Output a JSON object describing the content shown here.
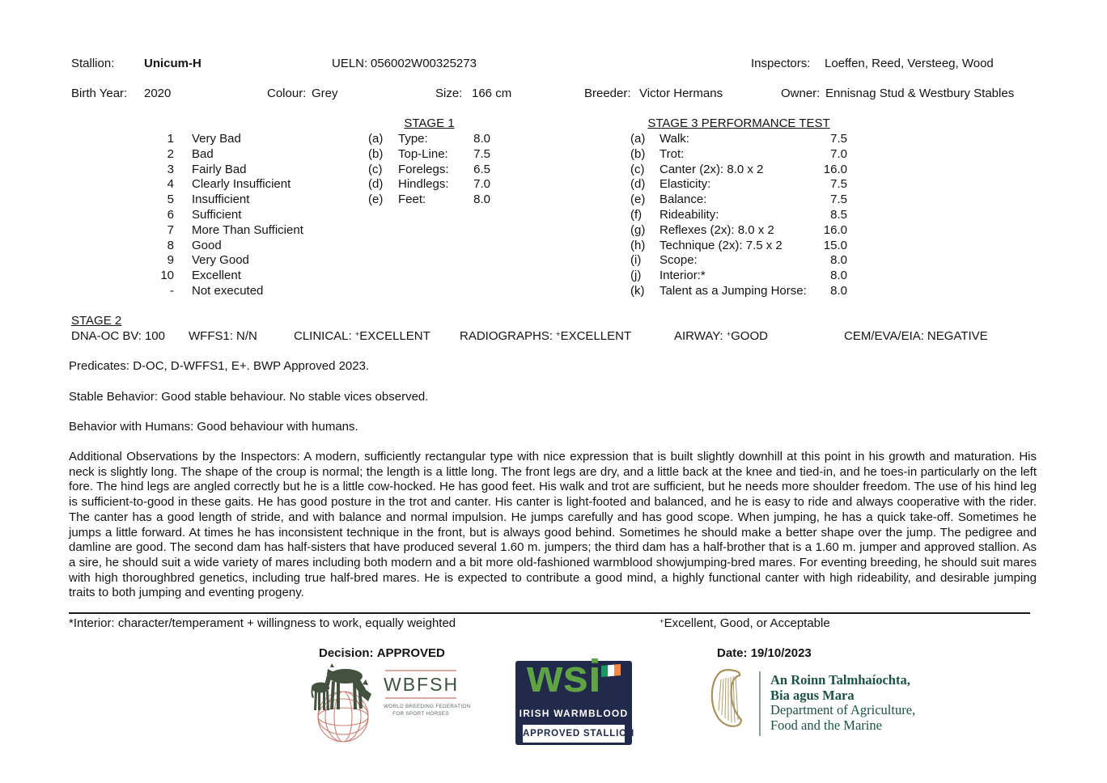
{
  "doc": {
    "stallion_label": "Stallion:",
    "stallion_name": "Unicum-H",
    "ueln_label": "UELN:",
    "ueln_value": "056002W00325273",
    "inspectors_label": "Inspectors:",
    "inspectors_value": "Loeffen, Reed, Versteeg, Wood",
    "birth_year_label": "Birth Year:",
    "birth_year_value": "2020",
    "colour_label": "Colour:",
    "colour_value": "Grey",
    "size_label": "Size:",
    "size_value": "166 cm",
    "breeder_label": "Breeder:",
    "breeder_value": "Victor Hermans",
    "owner_label": "Owner:",
    "owner_value": "Ennisnag Stud & Westbury Stables"
  },
  "scale": {
    "items": [
      {
        "num": "1",
        "label": "Very Bad"
      },
      {
        "num": "2",
        "label": "Bad"
      },
      {
        "num": "3",
        "label": "Fairly Bad"
      },
      {
        "num": "4",
        "label": "Clearly Insufficient"
      },
      {
        "num": "5",
        "label": "Insufficient"
      },
      {
        "num": "6",
        "label": "Sufficient"
      },
      {
        "num": "7",
        "label": "More Than Sufficient"
      },
      {
        "num": "8",
        "label": "Good"
      },
      {
        "num": "9",
        "label": "Very Good"
      },
      {
        "num": "10",
        "label": "Excellent"
      },
      {
        "num": "-",
        "label": "Not executed"
      }
    ]
  },
  "stage1": {
    "title": "STAGE 1",
    "items": [
      {
        "letter": "(a)",
        "label": "Type:",
        "score": "8.0"
      },
      {
        "letter": "(b)",
        "label": "Top-Line:",
        "score": "7.5"
      },
      {
        "letter": "(c)",
        "label": "Forelegs:",
        "score": "6.5"
      },
      {
        "letter": "(d)",
        "label": "Hindlegs:",
        "score": "7.0"
      },
      {
        "letter": "(e)",
        "label": "Feet:",
        "score": "8.0"
      }
    ]
  },
  "stage3": {
    "title": "STAGE 3 PERFORMANCE TEST",
    "items": [
      {
        "letter": "(a)",
        "label": "Walk:",
        "score": "7.5"
      },
      {
        "letter": "(b)",
        "label": "Trot:",
        "score": "7.0"
      },
      {
        "letter": "(c)",
        "label": "Canter (2x): 8.0 x 2",
        "score": "16.0"
      },
      {
        "letter": "(d)",
        "label": "Elasticity:",
        "score": "7.5"
      },
      {
        "letter": "(e)",
        "label": "Balance:",
        "score": "7.5"
      },
      {
        "letter": "(f)",
        "label": "Rideability:",
        "score": "8.5"
      },
      {
        "letter": "(g)",
        "label": "Reflexes (2x): 8.0 x 2",
        "score": "16.0"
      },
      {
        "letter": "(h)",
        "label": "Technique (2x): 7.5 x 2",
        "score": "15.0"
      },
      {
        "letter": "(i)",
        "label": "Scope:",
        "score": "8.0"
      },
      {
        "letter": "(j)",
        "label": "Interior:*",
        "score": "8.0"
      },
      {
        "letter": "(k)",
        "label": "Talent as a Jumping Horse:",
        "score": "8.0"
      }
    ]
  },
  "stage2": {
    "title": "STAGE 2",
    "fields": [
      {
        "label": "DNA-OC BV:",
        "sup": "",
        "value": "100"
      },
      {
        "label": "WFFS1:",
        "sup": "",
        "value": "N/N"
      },
      {
        "label": "CLINICAL:",
        "sup": "+",
        "value": "EXCELLENT"
      },
      {
        "label": "RADIOGRAPHS:",
        "sup": "+",
        "value": "EXCELLENT"
      },
      {
        "label": "AIRWAY:",
        "sup": "+",
        "value": "GOOD"
      },
      {
        "label": "CEM/EVA/EIA:",
        "sup": "",
        "value": "NEGATIVE"
      }
    ]
  },
  "notes": {
    "predicates": "Predicates: D-OC, D-WFFS1, E+. BWP Approved 2023.",
    "stable_behavior": "Stable Behavior: Good stable behaviour. No stable vices observed.",
    "behavior_humans": "Behavior with Humans: Good behaviour with humans.",
    "observations": "Additional Observations by the Inspectors: A modern, sufficiently rectangular type with nice expression that is built slightly downhill at this point in his growth and maturation. His neck is slightly long. The shape of the croup is normal; the length is a little long. The front legs are dry, and a little back at the knee and tied-in, and he toes-in particularly on the left fore. The hind legs are angled correctly but he is a little cow-hocked. He has good feet. His walk and trot are sufficient, but he needs more shoulder freedom. The use of his hind leg is sufficient-to-good in these gaits. He has good posture in the trot and canter. His canter is light-footed and balanced, and he is easy to ride and always cooperative with the rider. The canter has a good length of stride, and with balance and normal impulsion. He jumps carefully and has good scope. When jumping, he has a quick take-off. Sometimes he jumps a little forward. At times he has inconsistent technique in the front, but is always good behind. Sometimes he should make a better shape over the jump. The pedigree and damline are good. The second dam has half-sisters that have produced several 1.60 m. jumpers; the third dam has a half-brother that is a 1.60 m. jumper and approved stallion. As a sire, he should suit a wide variety of mares including both modern and a bit more old-fashioned warmblood showjumping-bred mares. For eventing breeding, he should suit mares with high thoroughbred genetics, including true half-bred mares. He is expected to contribute a good mind, a highly functional canter with high rideability, and desirable jumping traits to both jumping and eventing progeny."
  },
  "footnote": {
    "left": "*Interior: character/temperament + willingness to work, equally weighted",
    "right_sup": "+",
    "right_text": "Excellent, Good, or Acceptable"
  },
  "decision": {
    "label": "Decision:",
    "value": "APPROVED"
  },
  "date_line": {
    "label": "Date:",
    "value": "19/10/2023"
  },
  "logos": {
    "wbfsh": {
      "acronym": "WBFSH",
      "subtitle1": "WORLD BREEDING FEDERATION",
      "subtitle2": "FOR SPORT HORSES"
    },
    "wsi": {
      "acronym": "wsi",
      "line1": "IRISH WARMBLOOD",
      "badge": "APPROVED STALLION"
    },
    "dept": {
      "irish1": "An Roinn Talmhaíochta,",
      "irish2": "Bia agus Mara",
      "english1": "Department of Agriculture,",
      "english2": "Food and the Marine"
    }
  },
  "colors": {
    "text": "#141414",
    "wbfsh_green": "#3f5340",
    "wbfsh_globe_pink": "#c97f75",
    "wsi_navy": "#222a4c",
    "wsi_green": "#5fa344",
    "irish_flag_green": "#169b62",
    "irish_flag_orange": "#ff883e",
    "harp_gold": "#a8925f",
    "dept_text_green": "#1c5146"
  }
}
